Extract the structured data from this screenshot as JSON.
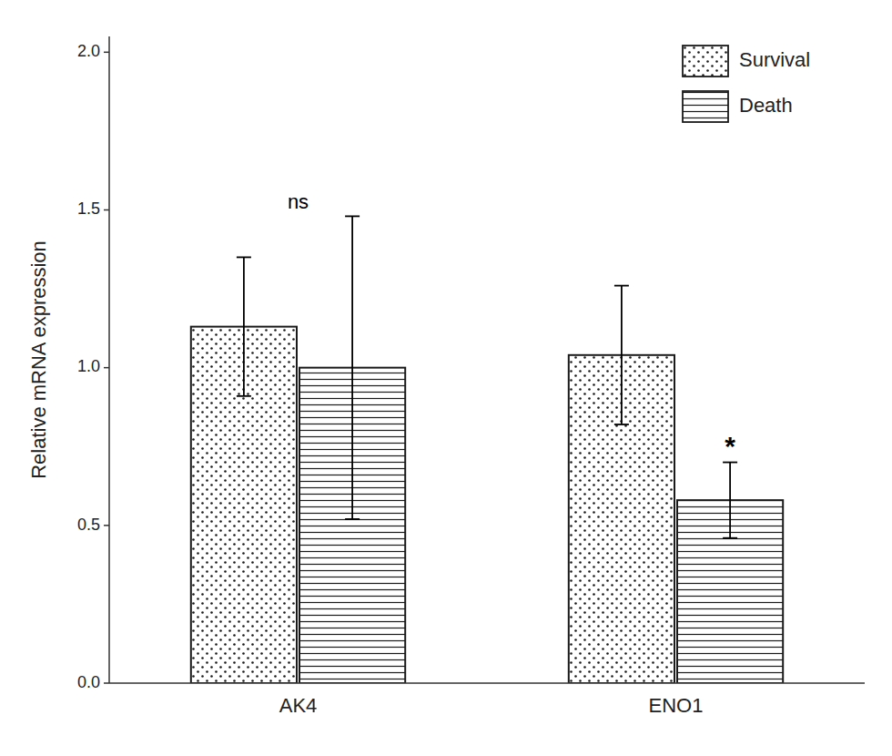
{
  "chart_data": {
    "type": "bar",
    "categories": [
      "AK4",
      "ENO1"
    ],
    "series": [
      {
        "name": "Survival",
        "values": [
          1.13,
          1.04
        ],
        "errors": [
          0.22,
          0.22
        ]
      },
      {
        "name": "Death",
        "values": [
          1.0,
          0.58
        ],
        "errors": [
          0.48,
          0.12
        ]
      }
    ],
    "ylabel": "Relative mRNA expression",
    "ylim": [
      0.0,
      2.05
    ],
    "yticks": [
      {
        "value": 0.0,
        "label": "0.0"
      },
      0.5,
      {
        "value": 1.0,
        "label": "1.0"
      },
      1.5,
      {
        "value": 2.0,
        "label": "2.0"
      }
    ],
    "annotations": [
      {
        "text": "ns",
        "category": "AK4"
      },
      {
        "text": "*",
        "category": "ENO1",
        "series": "Death"
      }
    ],
    "color": "#1a1a1a",
    "legend": "upper right",
    "grid": false
  }
}
